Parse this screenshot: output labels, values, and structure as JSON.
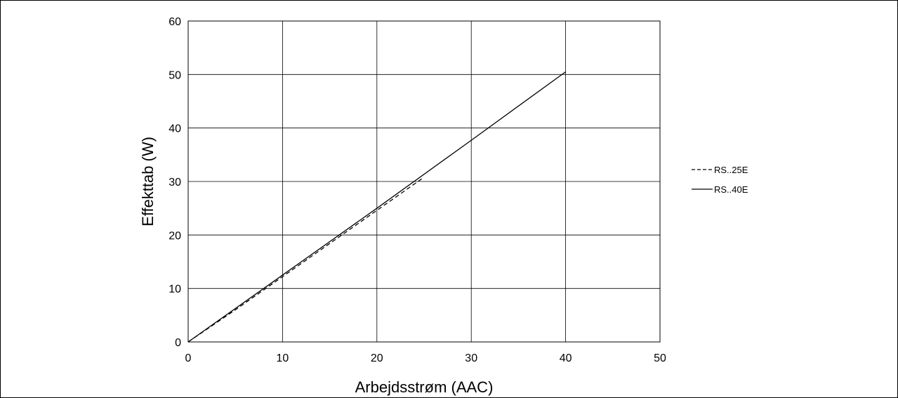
{
  "chart_data": {
    "type": "line",
    "title": "",
    "xlabel": "Arbejdsstrøm (AAC)",
    "ylabel": "Effekttab (W)",
    "xlim": [
      0,
      50
    ],
    "ylim": [
      0,
      60
    ],
    "xticks": [
      "0",
      "10",
      "20",
      "30",
      "40",
      "50"
    ],
    "yticks": [
      "0",
      "10",
      "20",
      "30",
      "40",
      "50",
      "60"
    ],
    "grid": true,
    "legend_position": "right",
    "series": [
      {
        "name": "RS..25E",
        "style": "dashed",
        "color": "#000000",
        "x": [
          0,
          5,
          10,
          15,
          20,
          25
        ],
        "y": [
          0,
          6.0,
          12.2,
          18.4,
          24.6,
          30.8
        ]
      },
      {
        "name": "RS..40E",
        "style": "solid",
        "color": "#000000",
        "x": [
          0,
          10,
          20,
          30,
          40
        ],
        "y": [
          0,
          12.5,
          25.0,
          37.7,
          50.5
        ]
      }
    ]
  }
}
